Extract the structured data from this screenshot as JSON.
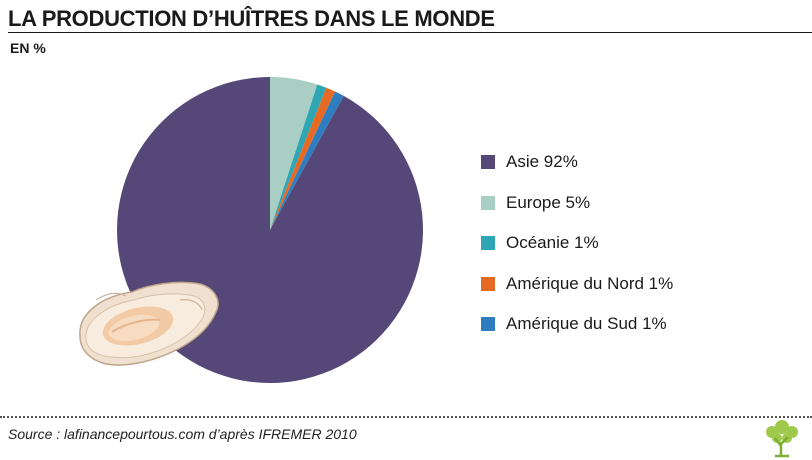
{
  "header": {
    "title": "LA PRODUCTION D’HUÎTRES DANS LE MONDE",
    "unit": "EN %"
  },
  "chart_data": {
    "type": "pie",
    "categories": [
      "Asie",
      "Europe",
      "Océanie",
      "Amérique du Nord",
      "Amérique du Sud"
    ],
    "values": [
      92,
      5,
      1,
      1,
      1
    ],
    "colors": [
      "#554878",
      "#a9cfc5",
      "#2fa6b3",
      "#e66a24",
      "#2f7dc1"
    ],
    "legend_labels": [
      "Asie 92%",
      "Europe 5%",
      "Océanie 1%",
      "Amérique du Nord 1%",
      "Amérique du Sud 1%"
    ],
    "start": "12 o'clock",
    "direction": "clockwise, small slices first",
    "legend_position": "right"
  },
  "decoration": {
    "illustration": "oyster-illustration",
    "logo": "tree-icon"
  },
  "footer": {
    "source": "Source : lafinancepourtous.com d’après IFREMER 2010"
  }
}
